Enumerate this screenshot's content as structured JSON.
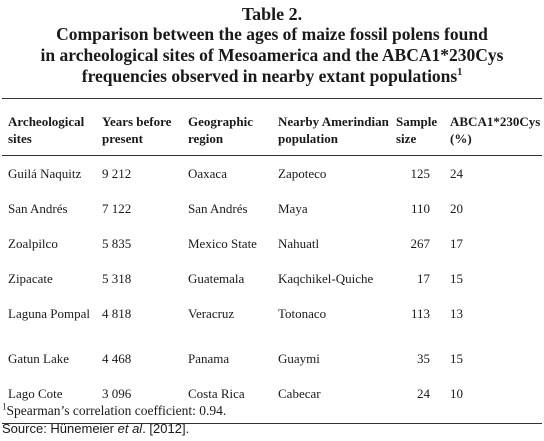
{
  "title": {
    "label": "Table 2.",
    "line1": "Comparison between the ages of maize fossil polens found",
    "line2": "in archeological sites of Mesoamerica and the ABCA1*230Cys",
    "line3": "frequencies observed in nearby extant populations",
    "footnote_marker": "1"
  },
  "table": {
    "headers": [
      "Archeological sites",
      "Years before present",
      "Geographic region",
      "Nearby Amerindian population",
      "Sample size",
      "ABCA1*230Cys (%)"
    ],
    "rows": [
      [
        "Guilá Naquitz",
        "9 212",
        "Oaxaca",
        "Zapoteco",
        "125",
        "24"
      ],
      [
        "San Andrés",
        "7 122",
        "San Andrés",
        "Maya",
        "110",
        "20"
      ],
      [
        "Zoalpilco",
        "5 835",
        "Mexico State",
        "Nahuatl",
        "267",
        "17"
      ],
      [
        "Zipacate",
        "5 318",
        "Guatemala",
        "Kaqchikel-Quiche",
        "17",
        "15"
      ],
      [
        "Laguna Pompal",
        "4 818",
        "Veracruz",
        "Totonaco",
        "113",
        "13"
      ],
      [
        "Gatun Lake",
        "4 468",
        "Panama",
        "Guaymi",
        "35",
        "15"
      ],
      [
        "Lago Cote",
        "3 096",
        "Costa Rica",
        "Cabecar",
        "24",
        "10"
      ]
    ]
  },
  "footnotes": {
    "note_marker": "1",
    "note_text": "Spearman’s correlation coefficient: 0.94.",
    "source_prefix": "Source: Hünemeier ",
    "source_italic": "et al",
    "source_suffix": ". [2012]."
  }
}
